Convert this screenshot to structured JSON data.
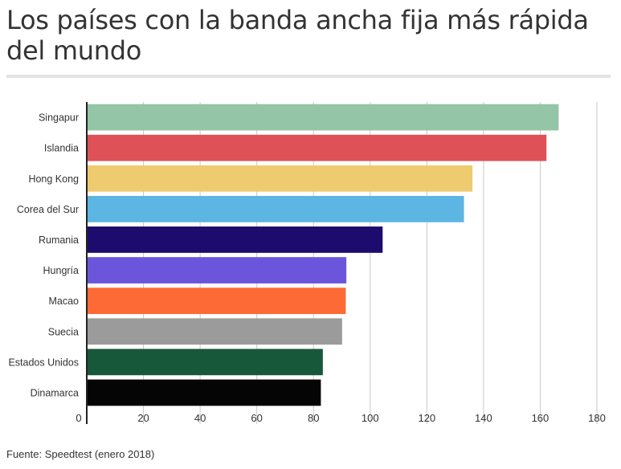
{
  "title": "Los países con la banda ancha fija más rápida del mundo",
  "source": "Fuente: Speedtest (enero 2018)",
  "chart_data": {
    "type": "bar",
    "orientation": "horizontal",
    "title": "Los países con la banda ancha fija más rápida del mundo",
    "xlabel": "",
    "ylabel": "",
    "xlim": [
      0,
      180
    ],
    "xticks": [
      0,
      20,
      40,
      60,
      80,
      100,
      120,
      140,
      160,
      180
    ],
    "grid": true,
    "categories": [
      "Singapur",
      "Islandia",
      "Hong Kong",
      "Corea del Sur",
      "Rumania",
      "Hungría",
      "Macao",
      "Suecia",
      "Estados Unidos",
      "Dinamarca"
    ],
    "values": [
      166.5,
      162.2,
      136.1,
      133.1,
      104.4,
      91.6,
      91.4,
      90.1,
      83.3,
      82.6
    ],
    "colors": [
      "#93c5a6",
      "#dd5157",
      "#edcb6e",
      "#5cb5e3",
      "#1d0b6e",
      "#6b56db",
      "#fd6a36",
      "#9b9b9b",
      "#17573a",
      "#050505"
    ]
  },
  "colors": {
    "grid": "#c8c8c8",
    "axis": "#222222",
    "text": "#333333",
    "rule": "#e3e3e3"
  }
}
